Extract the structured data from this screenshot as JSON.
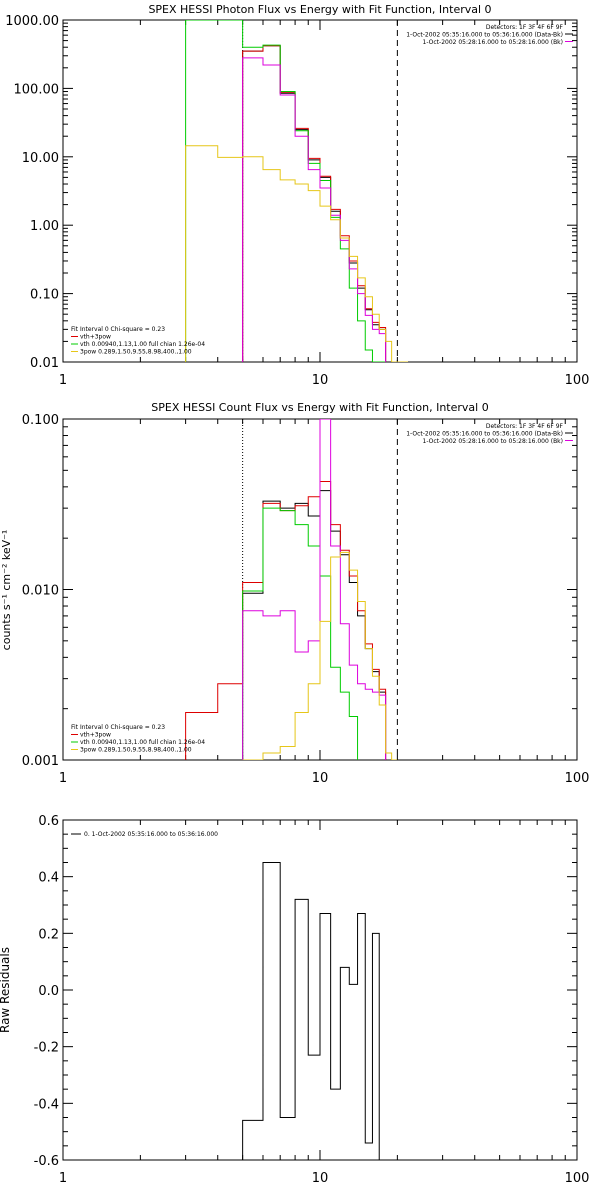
{
  "chart_data": [
    {
      "type": "line",
      "title": "SPEX HESSI Photon Flux vs Energy with Fit Function, Interval 0",
      "xscale": "log",
      "yscale": "log",
      "xlim": [
        1,
        100
      ],
      "ylim": [
        0.01,
        1000
      ],
      "xticks": [
        {
          "v": 1,
          "label": "1"
        },
        {
          "v": 10,
          "label": "10"
        },
        {
          "v": 100,
          "label": "100"
        }
      ],
      "yticks": [
        {
          "v": 0.01,
          "label": "0.01"
        },
        {
          "v": 0.1,
          "label": "0.10"
        },
        {
          "v": 1,
          "label": "1.00"
        },
        {
          "v": 10,
          "label": "10.00"
        },
        {
          "v": 100,
          "label": "100.00"
        },
        {
          "v": 1000,
          "label": "1000.00"
        }
      ],
      "info": [
        "Detectors: 1F 3F 4F 6F 9F",
        "1-Oct-2002 05:35:16.000 to 05:36:16.000 (Data-Bk)",
        "1-Oct-2002 05:28:16.000 to 05:28:16.000 (Bk)"
      ],
      "fit": [
        "Fit Interval 0   Chi-square = 0.23",
        "vth+3pow",
        "vth 0.00940,1.13,1.00  full chian 1.26e-04",
        "3pow 0.289,1.50,9.55,8.98,400.,1.00"
      ],
      "vlines": [
        {
          "x": 5,
          "style": "dotted"
        },
        {
          "x": 20,
          "style": "dashed"
        }
      ],
      "edges": [
        3,
        4,
        5,
        6,
        7,
        8,
        9,
        10,
        11,
        12,
        13,
        14,
        15,
        16,
        17,
        18,
        19,
        20,
        22
      ],
      "series": [
        {
          "color": "#000000",
          "values": [
            null,
            null,
            350,
            420,
            85,
            25,
            9,
            5,
            1.6,
            0.65,
            0.28,
            0.12,
            0.058,
            0.035,
            0.03,
            null,
            null,
            null
          ]
        },
        {
          "color": "#dd0000",
          "values": [
            null,
            null,
            350,
            420,
            88,
            26,
            9.5,
            5.2,
            1.7,
            0.7,
            0.3,
            0.13,
            0.06,
            0.038,
            0.032,
            null,
            null,
            null
          ]
        },
        {
          "color": "#00cc00",
          "values": [
            1000,
            1000,
            400,
            430,
            90,
            24,
            8,
            4.5,
            1.3,
            0.45,
            0.12,
            0.04,
            0.015,
            0.01,
            0.01,
            null,
            null,
            null
          ]
        },
        {
          "color": "#dd00dd",
          "values": [
            null,
            null,
            280,
            220,
            80,
            20,
            6.5,
            3.5,
            1.4,
            0.6,
            0.23,
            0.1,
            0.048,
            0.03,
            0.026,
            null,
            null,
            null
          ]
        },
        {
          "color": "#e6c619",
          "values": [
            14.5,
            9.8,
            10,
            6.5,
            4.6,
            4,
            3.2,
            1.9,
            1.2,
            0.65,
            0.35,
            0.17,
            0.09,
            0.05,
            0.03,
            0.02,
            0.01,
            0.01
          ]
        }
      ]
    },
    {
      "type": "line",
      "title": "SPEX HESSI Count Flux vs Energy with Fit Function, Interval 0",
      "ylabel": "counts s⁻¹ cm⁻² keV⁻¹",
      "xscale": "log",
      "yscale": "log",
      "xlim": [
        1,
        100
      ],
      "ylim": [
        0.001,
        0.1
      ],
      "xticks": [
        {
          "v": 1,
          "label": "1"
        },
        {
          "v": 10,
          "label": "10"
        },
        {
          "v": 100,
          "label": "100"
        }
      ],
      "yticks": [
        {
          "v": 0.001,
          "label": "0.001"
        },
        {
          "v": 0.01,
          "label": "0.010"
        },
        {
          "v": 0.1,
          "label": "0.100"
        }
      ],
      "info": [
        "Detectors: 1F 3F 4F 6F 9F",
        "1-Oct-2002 05:35:16.000 to 05:36:16.000 (Data-Bk)",
        "1-Oct-2002 05:28:16.000 to 05:28:16.000 (Bk)"
      ],
      "fit": [
        "Fit Interval 0   Chi-square = 0.23",
        "vth+3pow",
        "vth 0.00940,1.13,1.00  full chian 1.26e-04",
        "3pow 0.289,1.50,9.55,8.98,400.,1.00"
      ],
      "vlines": [
        {
          "x": 5,
          "style": "dotted"
        },
        {
          "x": 20,
          "style": "dashed"
        }
      ],
      "edges": [
        3,
        4,
        5,
        6,
        7,
        8,
        9,
        10,
        11,
        12,
        13,
        14,
        15,
        16,
        17,
        18,
        19,
        20,
        21,
        22
      ],
      "series": [
        {
          "color": "#000000",
          "values": [
            null,
            null,
            0.0095,
            0.033,
            0.03,
            0.032,
            0.027,
            0.038,
            0.022,
            0.016,
            0.011,
            0.007,
            0.0045,
            0.0033,
            0.0025,
            null,
            null,
            null,
            null
          ]
        },
        {
          "color": "#dd0000",
          "values": [
            0.0019,
            0.0028,
            0.011,
            0.032,
            0.029,
            0.031,
            0.035,
            0.043,
            0.024,
            0.017,
            0.012,
            0.0075,
            0.0048,
            0.0034,
            0.0026,
            null,
            null,
            null,
            null
          ]
        },
        {
          "color": "#00cc00",
          "values": [
            null,
            null,
            0.0098,
            0.03,
            0.029,
            0.024,
            0.018,
            0.012,
            0.0035,
            0.0025,
            0.0018,
            null,
            null,
            null,
            null,
            null,
            null,
            null,
            null
          ]
        },
        {
          "color": "#dd00dd",
          "values": [
            null,
            null,
            0.0075,
            0.007,
            0.0075,
            0.0043,
            0.005,
            0.1,
            0.018,
            0.0063,
            0.0036,
            0.0028,
            0.0026,
            0.0025,
            0.0024,
            null,
            null,
            null,
            null
          ]
        },
        {
          "color": "#e6c619",
          "values": [
            null,
            null,
            0.0009,
            0.0011,
            0.0012,
            0.0019,
            0.0028,
            0.0065,
            0.0155,
            0.0165,
            0.013,
            0.0085,
            0.0045,
            0.0031,
            0.0021,
            0.0011,
            0.001,
            null,
            null
          ]
        }
      ]
    },
    {
      "type": "line",
      "ylabel": "Raw Residuals",
      "xscale": "log",
      "yscale": "linear",
      "xlim": [
        1,
        100
      ],
      "ylim": [
        -0.6,
        0.6
      ],
      "xticks": [
        {
          "v": 1,
          "label": "1"
        },
        {
          "v": 10,
          "label": "10"
        },
        {
          "v": 100,
          "label": "100"
        }
      ],
      "yticks": [
        {
          "v": -0.6,
          "label": "-0.6"
        },
        {
          "v": -0.4,
          "label": "-0.4"
        },
        {
          "v": -0.2,
          "label": "-0.2"
        },
        {
          "v": 0,
          "label": "0.0"
        },
        {
          "v": 0.2,
          "label": "0.2"
        },
        {
          "v": 0.4,
          "label": "0.4"
        },
        {
          "v": 0.6,
          "label": "0.6"
        }
      ],
      "legend": "0. 1-Oct-2002 05:35:16.000 to 05:36:16.000",
      "edges": [
        5,
        6,
        7,
        8,
        9,
        10,
        11,
        12,
        13,
        14,
        15,
        16,
        17,
        18,
        19,
        20
      ],
      "series": [
        {
          "color": "#000000",
          "values": [
            -0.46,
            0.45,
            -0.45,
            0.32,
            -0.23,
            0.27,
            -0.35,
            0.08,
            0.02,
            0.27,
            -0.54,
            0.2,
            -0.6,
            -0.6,
            -0.6
          ]
        }
      ]
    }
  ]
}
